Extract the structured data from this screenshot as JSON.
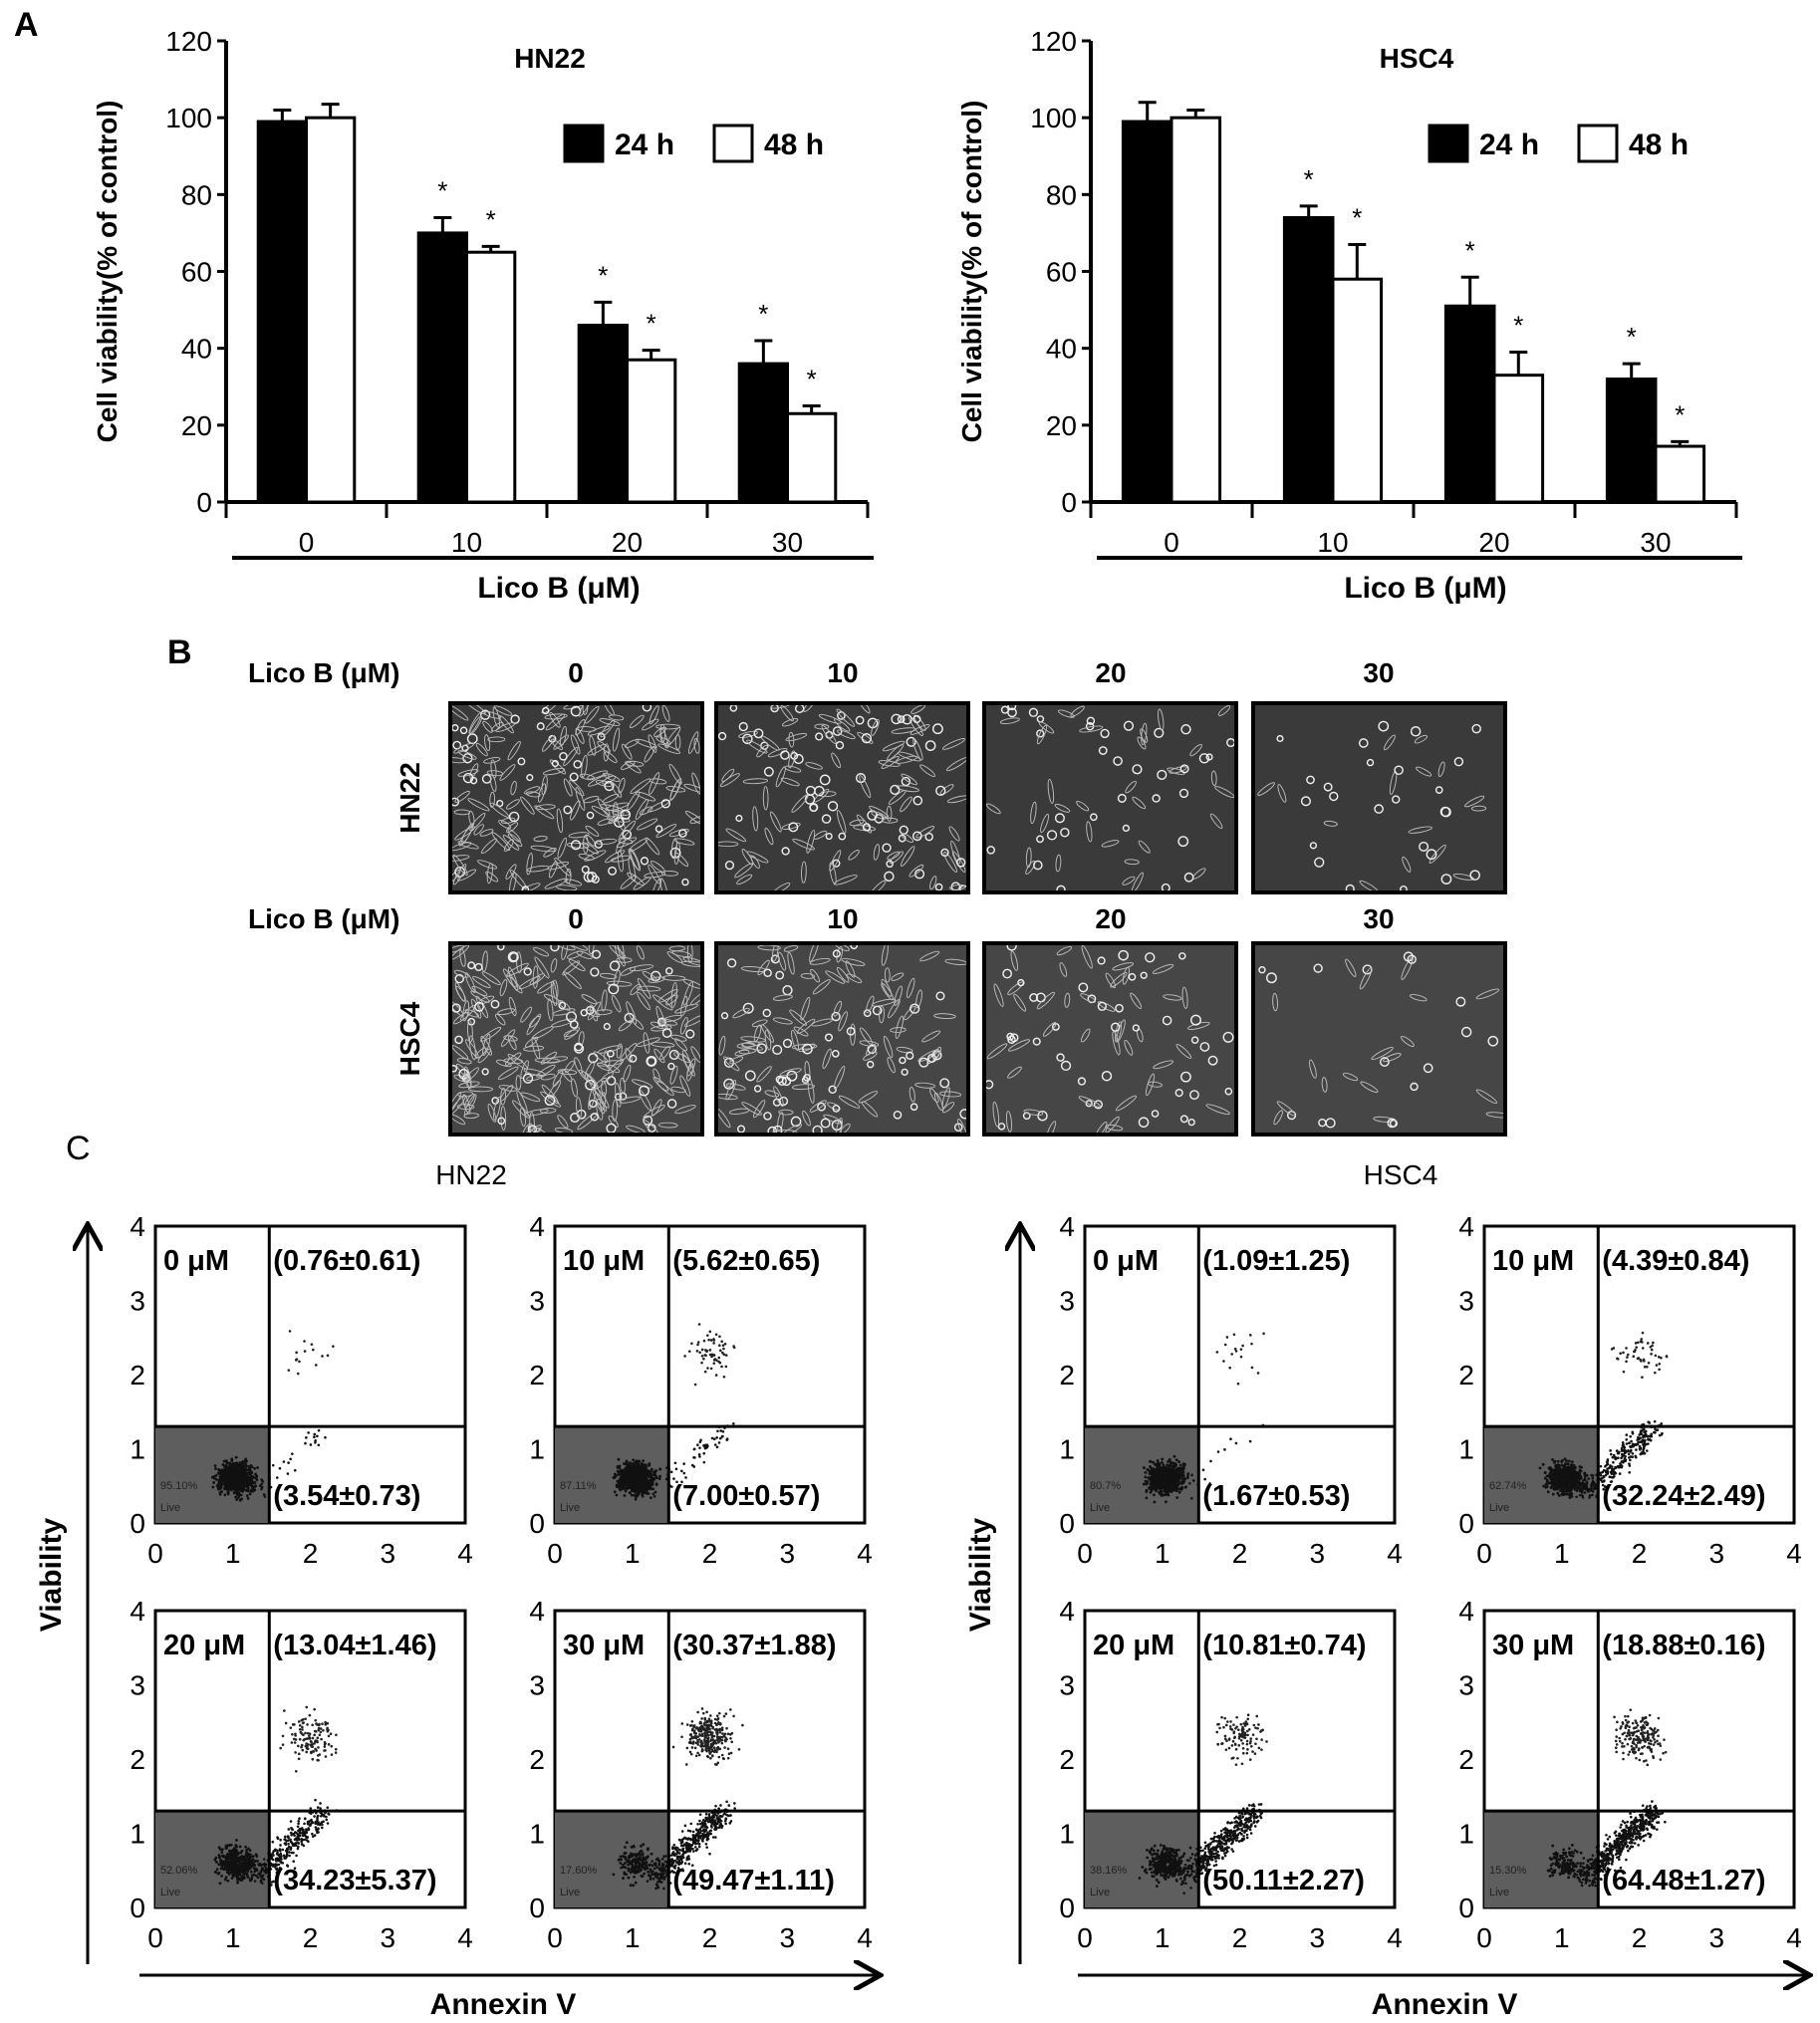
{
  "panel_labels": {
    "a": "A",
    "b": "B",
    "c": "C"
  },
  "chart_data": [
    {
      "type": "bar",
      "title": "HN22",
      "categories": [
        "0",
        "10",
        "20",
        "30"
      ],
      "xlabel": "Lico B (μM)",
      "ylabel": "Cell viability(% of control)",
      "ylim": [
        0,
        120
      ],
      "yticks": [
        0,
        20,
        40,
        60,
        80,
        100,
        120
      ],
      "legend": "top-right",
      "series": [
        {
          "name": "24 h",
          "color": "#000000",
          "values": [
            99,
            70,
            46,
            36
          ],
          "errors": [
            3,
            4,
            6,
            6
          ],
          "significant": [
            false,
            true,
            true,
            true
          ]
        },
        {
          "name": "48 h",
          "color": "#ffffff",
          "values": [
            100,
            65,
            37,
            23
          ],
          "errors": [
            3.5,
            1.5,
            2.5,
            2
          ],
          "significant": [
            false,
            true,
            true,
            true
          ]
        }
      ],
      "significance_mark": "*"
    },
    {
      "type": "bar",
      "title": "HSC4",
      "categories": [
        "0",
        "10",
        "20",
        "30"
      ],
      "xlabel": "Lico B (μM)",
      "ylabel": "Cell viability(% of control)",
      "ylim": [
        0,
        120
      ],
      "yticks": [
        0,
        20,
        40,
        60,
        80,
        100,
        120
      ],
      "legend": "top-right",
      "series": [
        {
          "name": "24 h",
          "color": "#000000",
          "values": [
            99,
            74,
            51,
            32
          ],
          "errors": [
            5,
            3,
            7.5,
            4
          ],
          "significant": [
            false,
            true,
            true,
            true
          ]
        },
        {
          "name": "48 h",
          "color": "#ffffff",
          "values": [
            100,
            58,
            33,
            14.5
          ],
          "errors": [
            2,
            9,
            6,
            1.2
          ],
          "significant": [
            false,
            true,
            true,
            true
          ]
        }
      ],
      "significance_mark": "*"
    }
  ],
  "panel_b": {
    "dose_label": "Lico B (μM)",
    "doses": [
      "0",
      "10",
      "20",
      "30"
    ],
    "rows": [
      {
        "cell_line": "HN22"
      },
      {
        "cell_line": "HSC4"
      }
    ]
  },
  "panel_c": {
    "y_label": "Viability",
    "x_label": "Annexin V",
    "axis_ticks": [
      "0",
      "1",
      "2",
      "3",
      "4"
    ],
    "live_label": "Live",
    "groups": [
      {
        "title": "HN22",
        "plots": [
          {
            "dose": "0 μM",
            "upper_right": "(0.76±0.61)",
            "lower_right": "(3.54±0.73)",
            "live_pct": "95.10"
          },
          {
            "dose": "10 μM",
            "upper_right": "(5.62±0.65)",
            "lower_right": "(7.00±0.57)",
            "live_pct": "87.11"
          },
          {
            "dose": "20 μM",
            "upper_right": "(13.04±1.46)",
            "lower_right": "(34.23±5.37)",
            "live_pct": "52.06"
          },
          {
            "dose": "30 μM",
            "upper_right": "(30.37±1.88)",
            "lower_right": "(49.47±1.11)",
            "live_pct": "17.60"
          }
        ]
      },
      {
        "title": "HSC4",
        "plots": [
          {
            "dose": "0 μM",
            "upper_right": "(1.09±1.25)",
            "lower_right": "(1.67±0.53)",
            "live_pct": "80.7"
          },
          {
            "dose": "10 μM",
            "upper_right": "(4.39±0.84)",
            "lower_right": "(32.24±2.49)",
            "live_pct": "62.74"
          },
          {
            "dose": "20 μM",
            "upper_right": "(10.81±0.74)",
            "lower_right": "(50.11±2.27)",
            "live_pct": "38.16"
          },
          {
            "dose": "30 μM",
            "upper_right": "(18.88±0.16)",
            "lower_right": "(64.48±1.27)",
            "live_pct": "15.30"
          }
        ]
      }
    ]
  }
}
